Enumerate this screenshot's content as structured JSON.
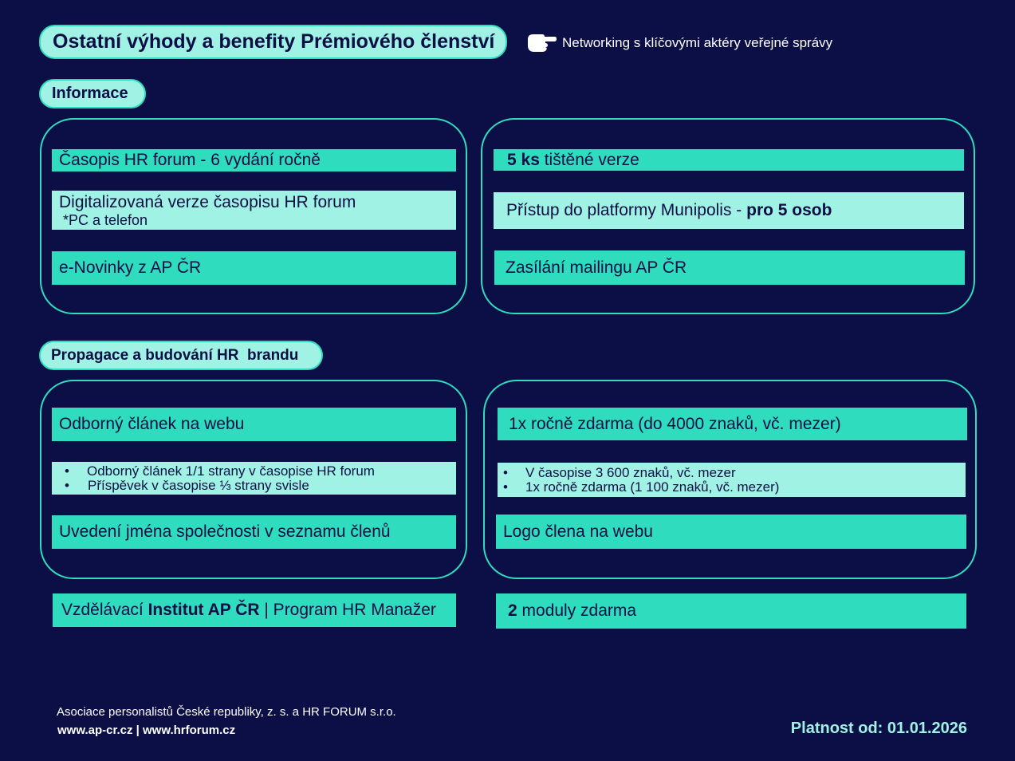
{
  "header": {
    "title": "Ostatní výhody a benefity Prémiového členství",
    "networking_icon": "pointing-hand-icon",
    "networking_text": "Networking s klíčovými aktéry veřejné správy"
  },
  "informace": {
    "label": "Informace",
    "left": {
      "item1": "Časopis HR forum - 6 vydání ročně",
      "item2_line1": "Digitalizovaná verze časopisu HR forum",
      "item2_line2": "*PC a telefon",
      "item3": "e-Novinky z AP ČR"
    },
    "right": {
      "item1_bold": "5 ks",
      "item1_rest": " tištěné verze",
      "item2_text": "Přístup do platformy Munipolis - ",
      "item2_bold": "pro 5 osob",
      "item3": "Zasílání mailingu AP ČR"
    }
  },
  "propagace": {
    "label": "Propagace a budování HR  brandu",
    "left": {
      "item1": "Odborný článek na webu",
      "bullet1": "Odborný článek 1/1 strany v časopise HR forum",
      "bullet2": "Příspěvek v časopise ⅓ strany svisle",
      "item3": "Uvedení jména společnosti v seznamu členů"
    },
    "right": {
      "item1": "1x ročně zdarma (do 4000 znaků, vč. mezer)",
      "bullet1": "V časopise 3 600 znaků, vč. mezer",
      "bullet2": "1x ročně zdarma (1 100 znaků, vč. mezer)",
      "item3": "Logo člena na webu"
    }
  },
  "vzdelavani": {
    "left_text1": "Vzdělávací ",
    "left_bold": "Institut AP ČR",
    "left_text2": " | Program HR Manažer",
    "right_bold": "2",
    "right_text": " moduly zdarma"
  },
  "footer": {
    "org": "Asociace personalistů České republiky, z. s. a HR FORUM s.r.o.",
    "links": "www.ap-cr.cz | www.hrforum.cz",
    "validity": "Platnost od: 01.01.2026"
  },
  "colors": {
    "background": "#0c0f45",
    "accent": "#2fdcbd",
    "light_accent": "#a0f2e4"
  }
}
